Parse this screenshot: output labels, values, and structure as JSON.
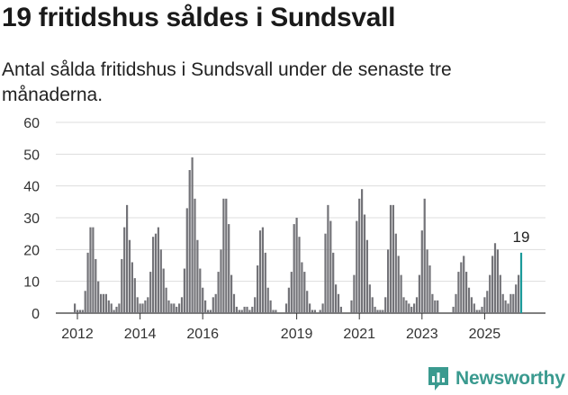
{
  "header": {
    "title": "19 fritidshus såldes i Sundsvall",
    "subtitle": "Antal sålda fritidshus i Sundsvall under de senaste tre månaderna."
  },
  "brand": {
    "name": "Newsworthy",
    "color": "#3a9a8f"
  },
  "chart_data": {
    "type": "bar",
    "ylim": [
      0,
      60
    ],
    "yticks": [
      0,
      10,
      20,
      30,
      40,
      50,
      60
    ],
    "xticks": [
      "2012",
      "2014",
      "2016",
      "2019",
      "2021",
      "2023",
      "2025"
    ],
    "bar_color": "#737378",
    "highlight_color": "#1a9a9a",
    "highlight_label": "19",
    "grid": true,
    "series": [
      {
        "values": [
          3,
          1,
          1,
          1,
          7,
          19,
          27,
          27,
          17,
          10,
          6,
          6,
          6,
          4,
          3,
          1,
          2,
          3,
          17,
          27,
          34,
          23,
          16,
          11,
          5,
          3,
          3,
          4,
          5,
          13,
          24,
          25,
          27,
          20,
          14,
          8,
          4,
          3,
          3,
          2,
          3,
          5,
          14,
          33,
          45,
          49,
          36,
          23,
          14,
          8,
          4,
          1,
          1,
          5,
          6,
          13,
          20,
          36,
          36,
          28,
          12,
          6,
          2,
          1,
          1,
          2,
          2,
          1,
          2,
          5,
          15,
          26,
          27,
          19,
          8,
          4,
          1,
          1,
          0,
          0,
          0,
          3,
          8,
          13,
          28,
          30,
          24,
          16,
          13,
          7,
          3,
          1,
          1,
          0,
          1,
          3,
          25,
          34,
          29,
          19,
          9,
          6,
          2,
          0,
          0,
          0,
          4,
          12,
          29,
          36,
          39,
          31,
          23,
          9,
          5,
          2,
          1,
          1,
          1,
          5,
          20,
          34,
          34,
          25,
          18,
          12,
          5,
          4,
          3,
          2,
          3,
          5,
          12,
          26,
          36,
          20,
          15,
          6,
          4,
          4,
          0,
          0,
          0,
          0,
          0,
          2,
          6,
          13,
          16,
          18,
          13,
          8,
          5,
          3,
          1,
          1,
          2,
          5,
          7,
          12,
          18,
          22,
          20,
          12,
          6,
          4,
          3,
          6,
          6,
          9,
          12
        ],
        "highlight_value": 19
      }
    ]
  }
}
